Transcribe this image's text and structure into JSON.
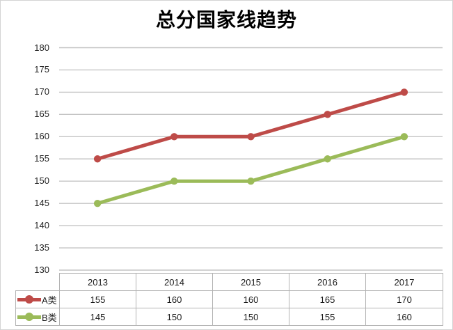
{
  "chart_data": {
    "type": "line",
    "title": "总分国家线趋势",
    "categories": [
      "2013",
      "2014",
      "2015",
      "2016",
      "2017"
    ],
    "series": [
      {
        "name": "A类",
        "values": [
          155,
          160,
          160,
          165,
          170
        ],
        "color": "#BE4B48"
      },
      {
        "name": "B类",
        "values": [
          145,
          150,
          150,
          155,
          160
        ],
        "color": "#9BBB59"
      }
    ],
    "ylim": [
      130,
      180
    ],
    "ytick_step": 5,
    "yticks": [
      130,
      135,
      140,
      145,
      150,
      155,
      160,
      165,
      170,
      175,
      180
    ],
    "grid": "horizontal",
    "legend_position": "data-table-left"
  }
}
